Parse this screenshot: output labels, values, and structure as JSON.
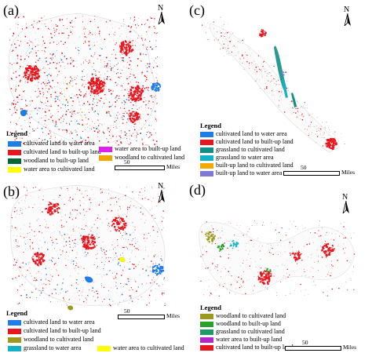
{
  "colors": {
    "cultivated_to_water": "#1f7de8",
    "cultivated_to_builtup": "#e8161e",
    "woodland_to_builtup": "#006837",
    "water_to_cultivated": "#ffff00",
    "water_to_builtup": "#e020e8",
    "woodland_to_cultivated": "#f2a700",
    "grassland_to_cultivated": "#0f8f88",
    "grassland_to_water": "#12b3c4",
    "builtup_to_cultivated": "#f5a800",
    "builtup_to_water": "#8079d6",
    "woodland_to_cultivated_d": "#9c9a1d",
    "woodland_to_builtup_d": "#2aa12a",
    "grassland_to_cultivated_d": "#1e9a63",
    "water_to_builtup_d": "#b426c8"
  },
  "panels": [
    {
      "id": "a",
      "label": "(a)",
      "north": "N",
      "legend_title": "Legend",
      "legend_items": [
        {
          "label": "cultivated land to water area",
          "color": "#1f7de8"
        },
        {
          "label": "cultivated land to built-up land",
          "color": "#e8161e"
        },
        {
          "label": "woodland to built-up land",
          "color": "#006837"
        },
        {
          "label": "water area to cultivated land",
          "color": "#ffff00"
        },
        {
          "label": "water area to built-up land",
          "color": "#e020e8"
        },
        {
          "label": "woodland to cultivated land",
          "color": "#f2a700"
        }
      ],
      "scale_value": "50",
      "scale_unit": "Miles"
    },
    {
      "id": "c",
      "label": "(c)",
      "north": "N",
      "legend_title": "Legend",
      "legend_items": [
        {
          "label": "cultivated land to water area",
          "color": "#1f7de8"
        },
        {
          "label": "cultivated land to built-up land",
          "color": "#e8161e"
        },
        {
          "label": "grassland to cultivated land",
          "color": "#0f8f88"
        },
        {
          "label": "grassland to water area",
          "color": "#12b3c4"
        },
        {
          "label": "built-up land to cultivated land",
          "color": "#f5a800"
        },
        {
          "label": "built-up land to water area",
          "color": "#8079d6"
        }
      ],
      "scale_value": "50",
      "scale_unit": "Miles"
    },
    {
      "id": "b",
      "label": "(b)",
      "north": "N",
      "legend_title": "Legend",
      "legend_items": [
        {
          "label": "cultivated land to water area",
          "color": "#1f7de8"
        },
        {
          "label": "cultivated land to built-up land",
          "color": "#e8161e"
        },
        {
          "label": "woodland to cultivated land",
          "color": "#9c9a1d"
        },
        {
          "label": "grassland to water area",
          "color": "#12b3c4"
        },
        {
          "label": "water area to cultivated land",
          "color": "#ffff00"
        }
      ],
      "scale_value": "50",
      "scale_unit": "Miles"
    },
    {
      "id": "d",
      "label": "(d)",
      "north": "N",
      "legend_title": "Legend",
      "legend_items": [
        {
          "label": "woodland to cultivated land",
          "color": "#9c9a1d"
        },
        {
          "label": "woodland to built-up land",
          "color": "#2aa12a"
        },
        {
          "label": "grassland to cultivated land",
          "color": "#1e9a63"
        },
        {
          "label": "water area to built-up land",
          "color": "#b426c8"
        },
        {
          "label": "cultivated land to built-up land",
          "color": "#e8161e"
        }
      ],
      "scale_value": "50",
      "scale_unit": "Miles"
    }
  ]
}
